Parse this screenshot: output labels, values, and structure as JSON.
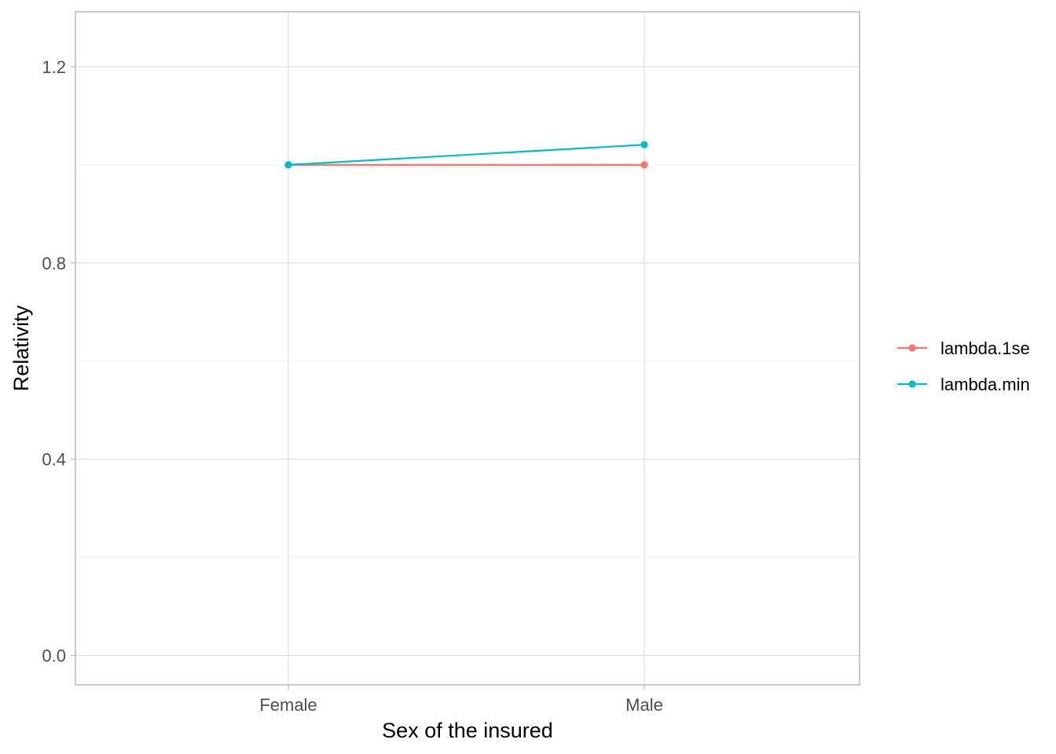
{
  "chart_data": {
    "type": "line",
    "title": "",
    "xlabel": "Sex of the insured",
    "ylabel": "Relativity",
    "categories": [
      "Female",
      "Male"
    ],
    "series": [
      {
        "name": "lambda.1se",
        "color": "#F8766D",
        "values": [
          1.0,
          1.0
        ]
      },
      {
        "name": "lambda.min",
        "color": "#00BFC4",
        "values": [
          1.0,
          1.041
        ]
      }
    ],
    "ylim": [
      -0.06,
      1.312
    ],
    "yticks": [
      0.0,
      0.4,
      0.8,
      1.2
    ],
    "yticks_labels": [
      "0.0",
      "0.4",
      "0.8",
      "1.2"
    ],
    "yminor": [
      0.2,
      0.6,
      1.0
    ],
    "grid": true,
    "legend": "right"
  }
}
